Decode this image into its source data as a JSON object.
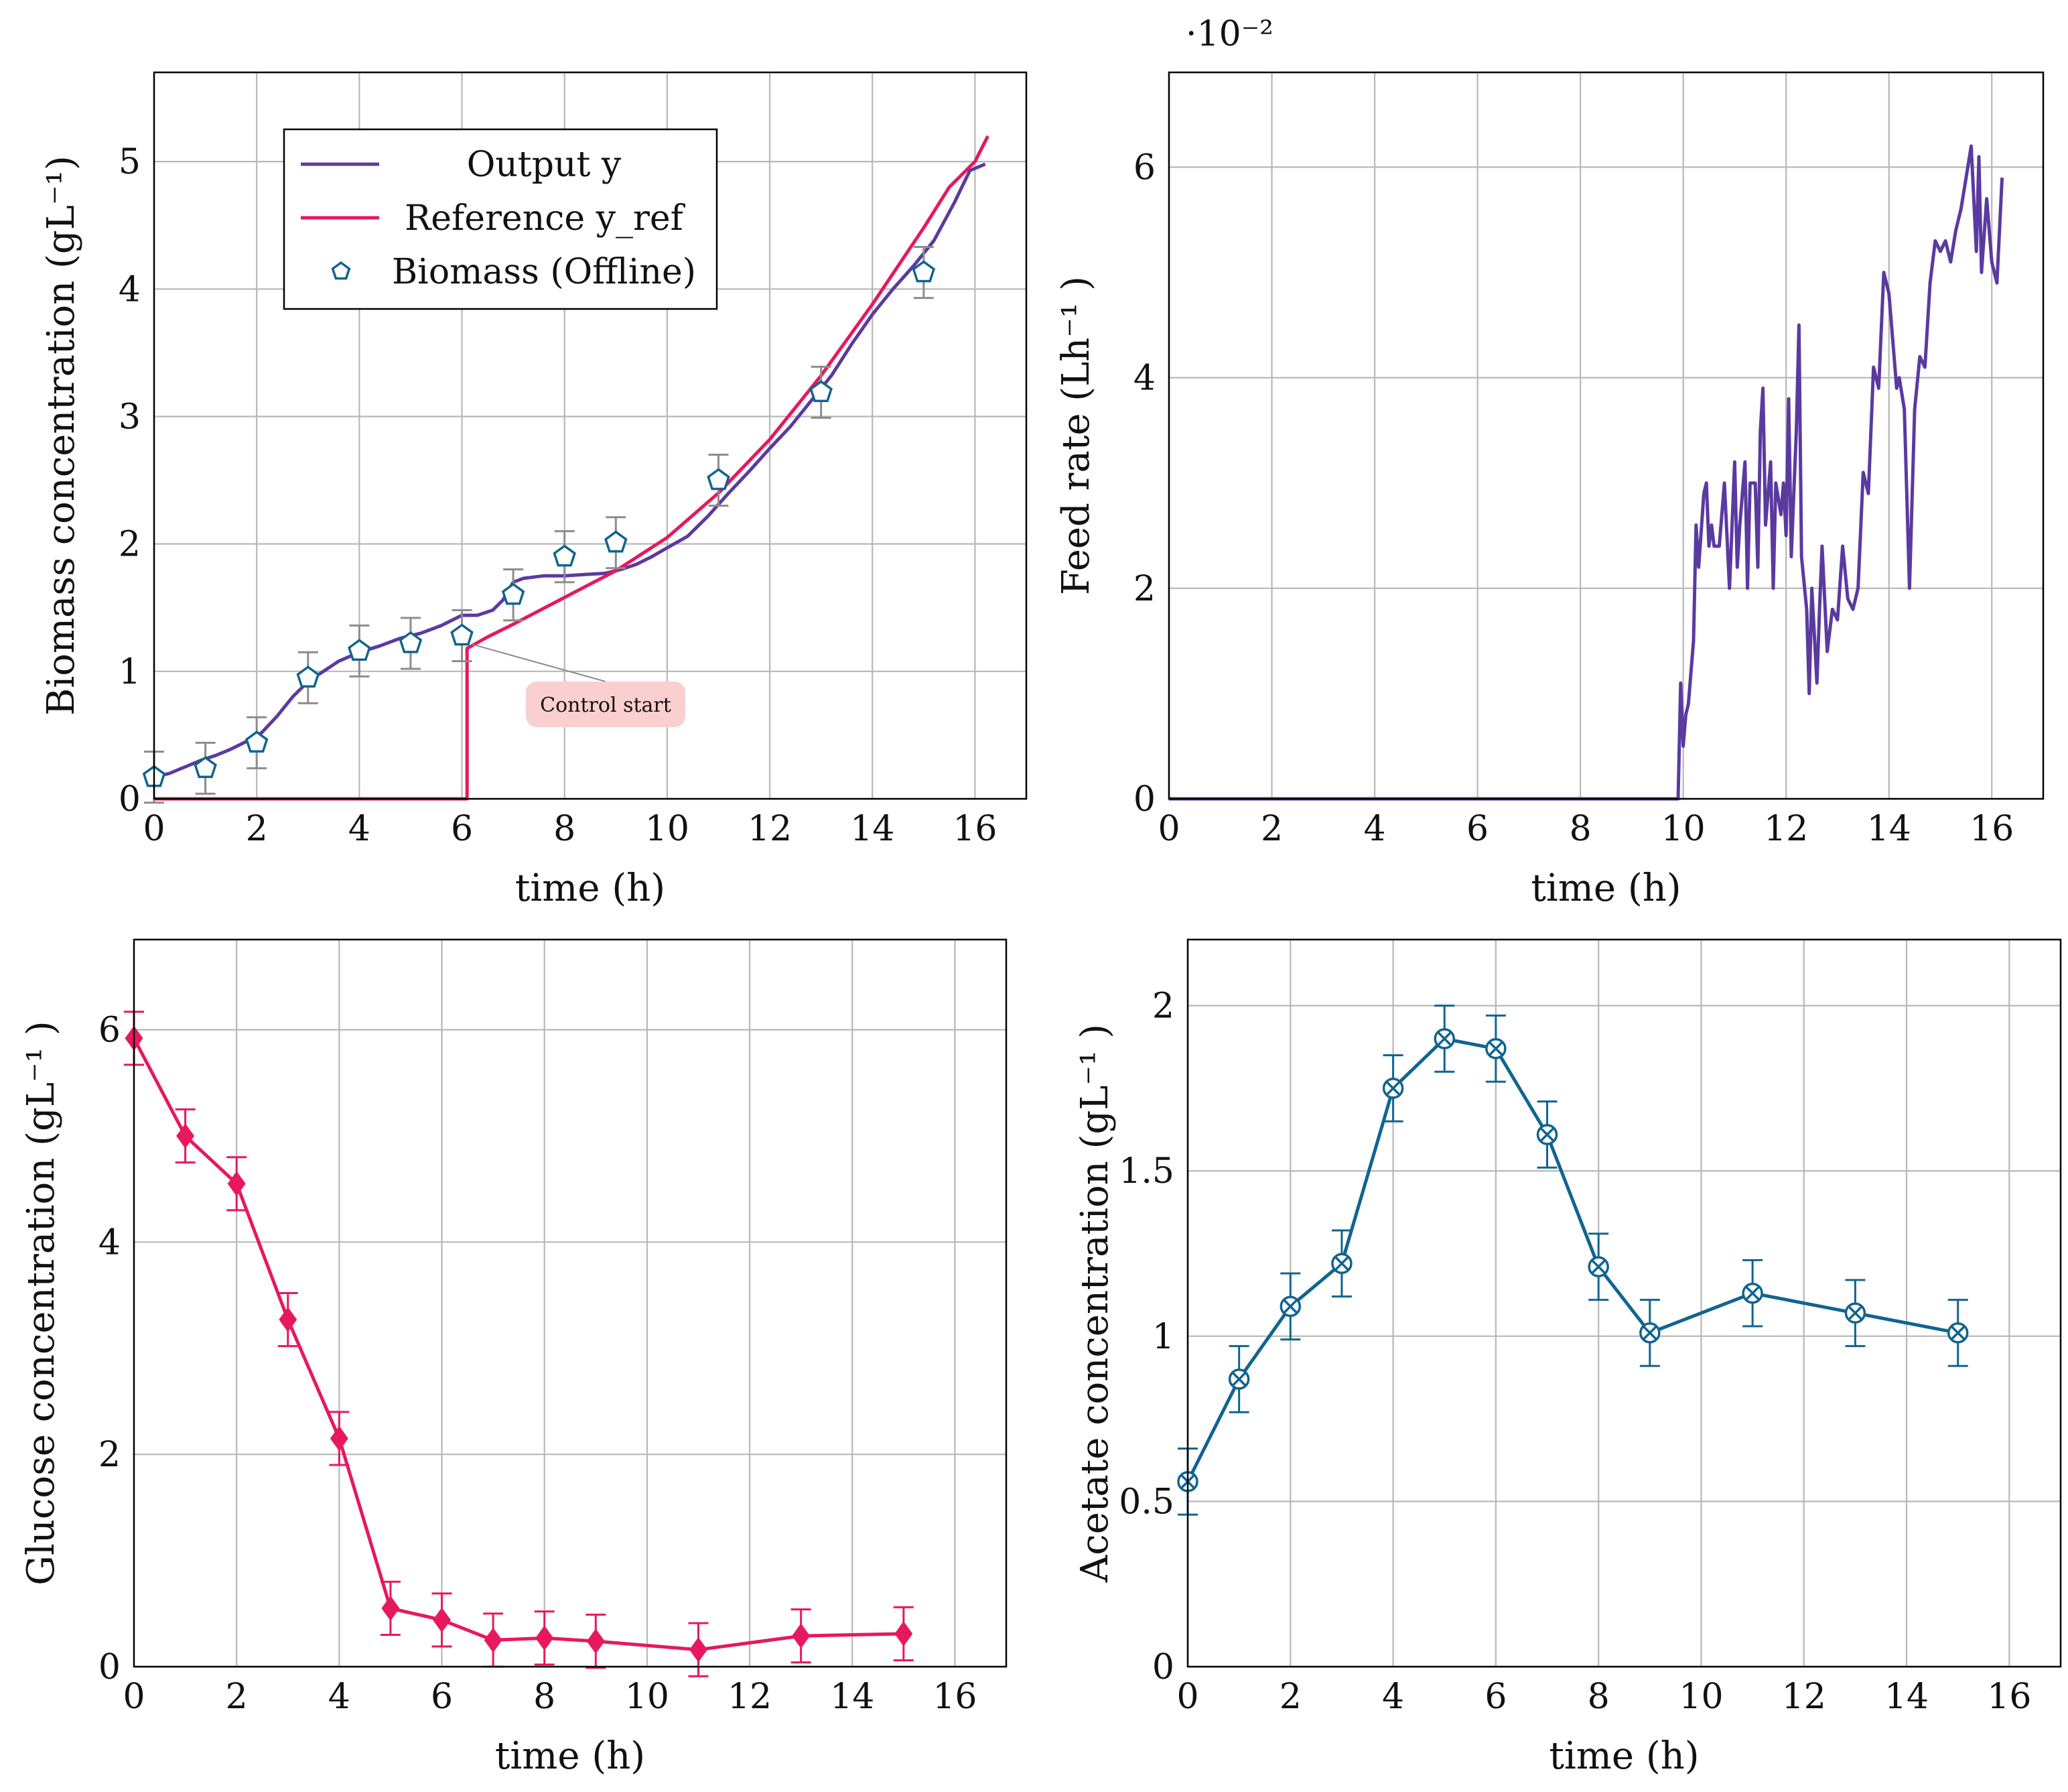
{
  "colors": {
    "purple": "#5b3aa0",
    "pink": "#e6185e",
    "blue": "#11648f",
    "grid": "#b8b8b8",
    "errorbar_gray": "#8c8c8c",
    "annotation_fill": "#f9cfcf"
  },
  "chart_data": [
    {
      "id": "biomass",
      "type": "line",
      "xlabel": "time (h)",
      "ylabel": "Biomass concentration (gL⁻¹)",
      "xlim": [
        0,
        17
      ],
      "ylim": [
        0,
        5.7
      ],
      "xticks": [
        0,
        2,
        4,
        6,
        8,
        10,
        12,
        14,
        16
      ],
      "yticks": [
        0,
        1,
        2,
        3,
        4,
        5
      ],
      "legend": {
        "position": "top-left",
        "entries": [
          "Output y",
          "Reference y_ref",
          "Biomass (Offline)"
        ]
      },
      "annotation": {
        "text": "Control start",
        "x": 6.1,
        "y": 1.18
      },
      "series": [
        {
          "name": "Output y",
          "style": "line",
          "color": "purple",
          "x": [
            0,
            0.3,
            0.6,
            0.9,
            1.2,
            1.5,
            1.8,
            2.1,
            2.4,
            2.7,
            3.0,
            3.3,
            3.6,
            4.0,
            4.4,
            4.8,
            5.2,
            5.6,
            6.0,
            6.3,
            6.6,
            6.8,
            7.0,
            7.2,
            7.6,
            8.0,
            8.4,
            8.8,
            9.1,
            9.4,
            9.7,
            10.0,
            10.4,
            10.8,
            11.2,
            11.6,
            12.0,
            12.4,
            12.8,
            13.2,
            13.6,
            14.0,
            14.4,
            14.8,
            15.2,
            15.6,
            15.9,
            16.2
          ],
          "y": [
            0.17,
            0.2,
            0.25,
            0.3,
            0.34,
            0.39,
            0.45,
            0.52,
            0.65,
            0.8,
            0.92,
            1.0,
            1.08,
            1.15,
            1.2,
            1.26,
            1.3,
            1.36,
            1.44,
            1.44,
            1.48,
            1.56,
            1.7,
            1.73,
            1.75,
            1.75,
            1.76,
            1.77,
            1.8,
            1.84,
            1.9,
            1.97,
            2.06,
            2.22,
            2.4,
            2.57,
            2.75,
            2.92,
            3.12,
            3.32,
            3.57,
            3.8,
            4.0,
            4.18,
            4.38,
            4.68,
            4.93,
            4.98
          ]
        },
        {
          "name": "Reference y_ref",
          "style": "line",
          "color": "pink",
          "x": [
            0,
            6.1,
            6.1,
            6.5,
            7,
            8,
            9,
            10,
            11,
            12,
            13,
            14,
            15,
            15.5,
            16,
            16.25
          ],
          "y": [
            0,
            0,
            1.18,
            1.27,
            1.37,
            1.58,
            1.79,
            2.05,
            2.4,
            2.82,
            3.32,
            3.88,
            4.48,
            4.8,
            5.0,
            5.2
          ]
        },
        {
          "name": "Biomass (Offline)",
          "style": "markers",
          "marker": "pentagon",
          "color": "blue",
          "error_color": "errorbar_gray",
          "x": [
            0,
            1,
            2,
            3,
            4,
            5,
            6,
            7,
            8,
            9,
            11,
            13,
            15
          ],
          "y": [
            0.17,
            0.24,
            0.44,
            0.95,
            1.16,
            1.22,
            1.28,
            1.6,
            1.9,
            2.01,
            2.5,
            3.19,
            4.13
          ],
          "yerr": [
            0.2,
            0.2,
            0.2,
            0.2,
            0.2,
            0.2,
            0.2,
            0.2,
            0.2,
            0.2,
            0.2,
            0.2,
            0.2
          ]
        }
      ]
    },
    {
      "id": "feed",
      "type": "line",
      "xlabel": "time (h)",
      "ylabel": "Feed rate (Lh⁻¹ )",
      "scale_label": "·10⁻²",
      "xlim": [
        0,
        17
      ],
      "ylim": [
        0,
        6.9
      ],
      "xticks": [
        0,
        2,
        4,
        6,
        8,
        10,
        12,
        14,
        16
      ],
      "yticks": [
        0,
        2,
        4,
        6
      ],
      "series": [
        {
          "name": "Feed rate",
          "style": "line",
          "color": "purple",
          "x": [
            0,
            9.9,
            9.95,
            10.0,
            10.05,
            10.1,
            10.2,
            10.25,
            10.3,
            10.4,
            10.45,
            10.5,
            10.55,
            10.6,
            10.7,
            10.8,
            10.9,
            11.0,
            11.05,
            11.1,
            11.2,
            11.25,
            11.3,
            11.4,
            11.45,
            11.5,
            11.55,
            11.6,
            11.7,
            11.75,
            11.8,
            11.9,
            11.95,
            12.0,
            12.05,
            12.1,
            12.2,
            12.25,
            12.3,
            12.4,
            12.45,
            12.5,
            12.6,
            12.65,
            12.7,
            12.8,
            12.9,
            13.0,
            13.1,
            13.2,
            13.3,
            13.4,
            13.5,
            13.6,
            13.7,
            13.8,
            13.9,
            14.0,
            14.1,
            14.15,
            14.2,
            14.3,
            14.4,
            14.5,
            14.6,
            14.7,
            14.8,
            14.9,
            15.0,
            15.1,
            15.2,
            15.3,
            15.4,
            15.5,
            15.6,
            15.7,
            15.75,
            15.8,
            15.9,
            16.0,
            16.1,
            16.2
          ],
          "y": [
            0,
            0,
            1.1,
            0.5,
            0.8,
            0.9,
            1.5,
            2.6,
            2.2,
            2.9,
            3.0,
            2.4,
            2.6,
            2.4,
            2.4,
            3.0,
            2.0,
            3.2,
            2.2,
            2.6,
            3.2,
            2.0,
            3.0,
            3.0,
            2.2,
            3.5,
            3.9,
            2.6,
            3.2,
            2.0,
            3.0,
            2.7,
            3.0,
            2.5,
            3.8,
            2.3,
            3.5,
            4.5,
            2.3,
            1.8,
            1.0,
            2.0,
            1.1,
            1.8,
            2.4,
            1.4,
            1.8,
            1.7,
            2.4,
            1.9,
            1.8,
            2.0,
            3.1,
            2.9,
            4.1,
            3.9,
            5.0,
            4.8,
            4.2,
            3.9,
            4.0,
            3.7,
            2.0,
            3.7,
            4.2,
            4.1,
            4.9,
            5.3,
            5.2,
            5.3,
            5.1,
            5.4,
            5.6,
            5.9,
            6.2,
            5.2,
            6.1,
            5.0,
            5.7,
            5.1,
            4.9,
            5.9
          ]
        }
      ]
    },
    {
      "id": "glucose",
      "type": "line",
      "xlabel": "time (h)",
      "ylabel": "Glucose concentration (gL⁻¹ )",
      "xlim": [
        0,
        17
      ],
      "ylim": [
        0,
        6.85
      ],
      "xticks": [
        0,
        2,
        4,
        6,
        8,
        10,
        12,
        14,
        16
      ],
      "yticks": [
        0,
        2,
        4,
        6
      ],
      "series": [
        {
          "name": "Glucose",
          "style": "line+markers",
          "marker": "diamond",
          "color": "pink",
          "error_color": "pink",
          "x": [
            0,
            1,
            2,
            3,
            4,
            5,
            6,
            7,
            8,
            9,
            11,
            13,
            15
          ],
          "y": [
            5.92,
            5.0,
            4.55,
            3.27,
            2.15,
            0.55,
            0.44,
            0.25,
            0.27,
            0.24,
            0.16,
            0.29,
            0.31
          ],
          "yerr": [
            0.25,
            0.25,
            0.25,
            0.25,
            0.25,
            0.25,
            0.25,
            0.25,
            0.25,
            0.25,
            0.25,
            0.25,
            0.25
          ]
        }
      ]
    },
    {
      "id": "acetate",
      "type": "line",
      "xlabel": "time (h)",
      "ylabel": "Acetate concentration (gL⁻¹ )",
      "xlim": [
        0,
        17
      ],
      "ylim": [
        0,
        2.2
      ],
      "xticks": [
        0,
        2,
        4,
        6,
        8,
        10,
        12,
        14,
        16
      ],
      "yticks": [
        0,
        0.5,
        1,
        1.5,
        2
      ],
      "ytick_labels": [
        "0",
        "0.5",
        "1",
        "1.5",
        "2"
      ],
      "series": [
        {
          "name": "Acetate",
          "style": "line+markers",
          "marker": "otimes",
          "color": "blue",
          "error_color": "blue",
          "x": [
            0,
            1,
            2,
            3,
            4,
            5,
            6,
            7,
            8,
            9,
            11,
            13,
            15
          ],
          "y": [
            0.56,
            0.87,
            1.09,
            1.22,
            1.75,
            1.9,
            1.87,
            1.61,
            1.21,
            1.01,
            1.13,
            1.07,
            1.01
          ],
          "yerr": [
            0.1,
            0.1,
            0.1,
            0.1,
            0.1,
            0.1,
            0.1,
            0.1,
            0.1,
            0.1,
            0.1,
            0.1,
            0.1
          ]
        }
      ]
    }
  ]
}
